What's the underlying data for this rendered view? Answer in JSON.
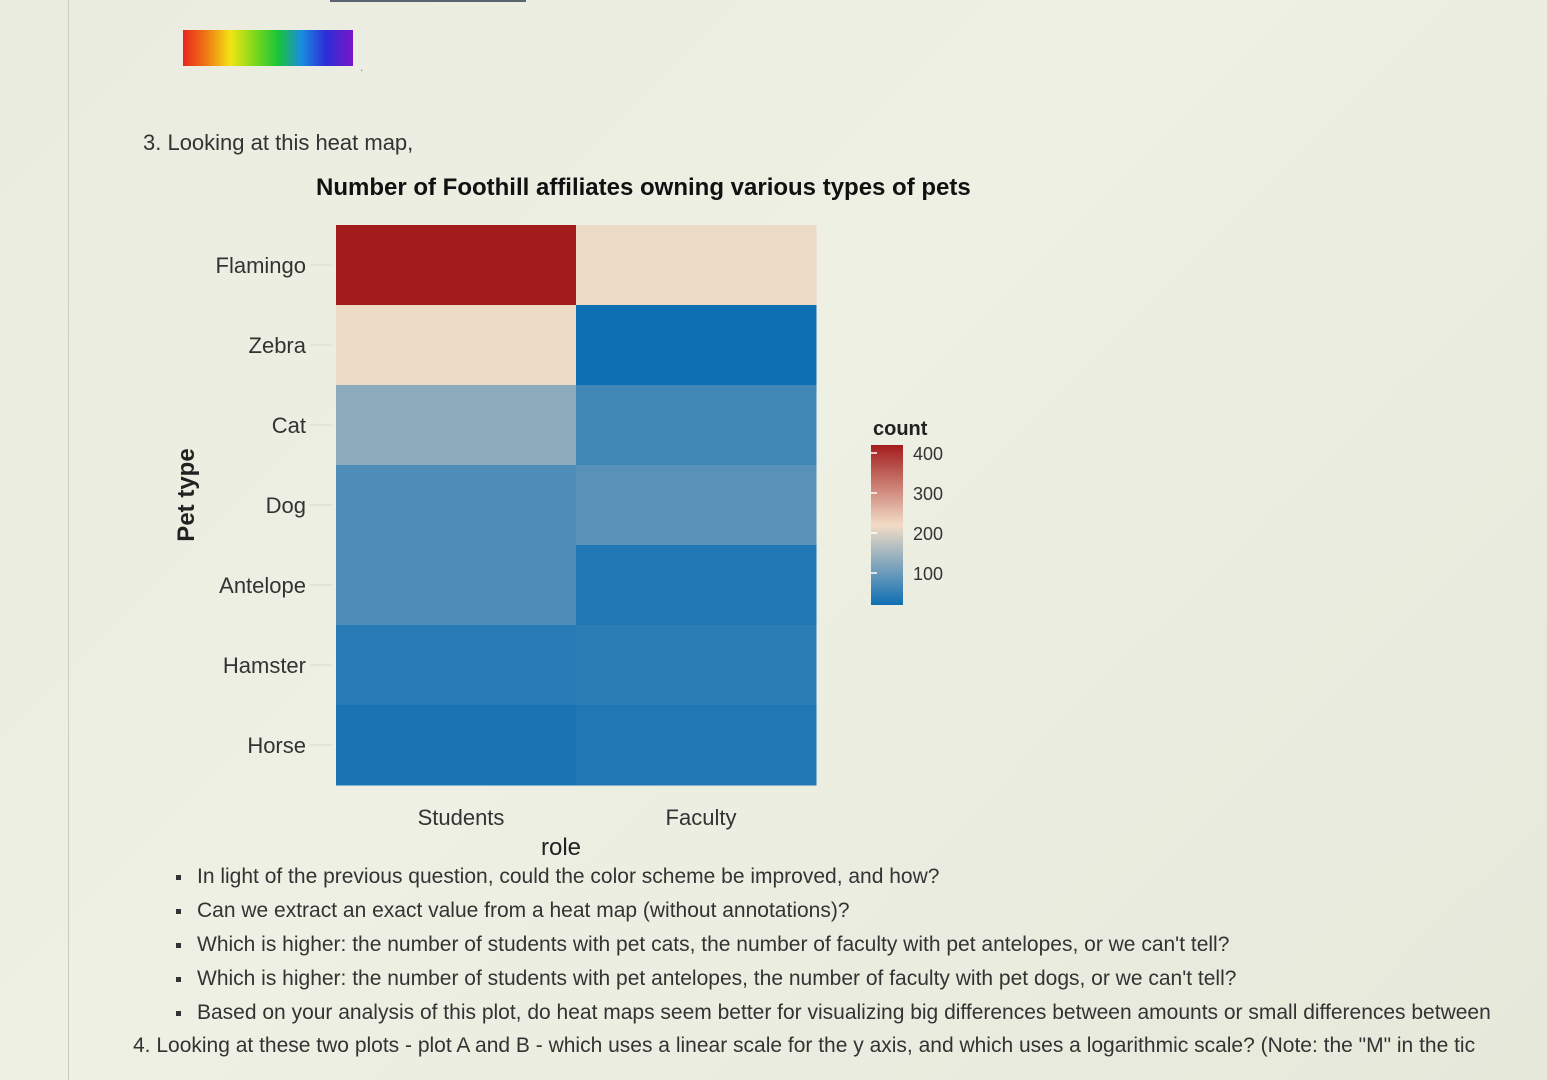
{
  "question3": "3. Looking at this heat map,",
  "bullets": [
    "In light of the previous question, could the color scheme be improved, and how?",
    "Can we extract an exact value from a heat map (without annotations)?",
    "Which is higher: the number of students with pet cats, the number of faculty with pet antelopes, or we can't tell?",
    "Which is higher: the number of students with pet antelopes, the number of faculty with pet dogs, or we can't tell?",
    "Based on your analysis of this plot, do heat maps seem better for visualizing big differences between amounts or small differences between"
  ],
  "question4": "4. Looking at these two plots - plot A and B - which uses a linear scale for the y axis, and which uses a logarithmic scale? (Note: the \"M\" in the tic",
  "colors": {
    "low": "#0f6fb3",
    "mid": "#f2dcc6",
    "high": "#a31c1c"
  },
  "chart_data": {
    "type": "heatmap",
    "title": "Number of Foothill affiliates owning various types of pets",
    "xlabel": "role",
    "ylabel": "Pet type",
    "x_categories": [
      "Students",
      "Faculty"
    ],
    "y_categories": [
      "Flamingo",
      "Zebra",
      "Cat",
      "Dog",
      "Antelope",
      "Hamster",
      "Horse"
    ],
    "values": [
      [
        420,
        215
      ],
      [
        215,
        20
      ],
      [
        130,
        65
      ],
      [
        75,
        85
      ],
      [
        75,
        35
      ],
      [
        40,
        45
      ],
      [
        30,
        35
      ]
    ],
    "legend": {
      "title": "count",
      "ticks": [
        100,
        200,
        300,
        400
      ],
      "range": [
        20,
        420
      ],
      "placement": "right"
    }
  }
}
